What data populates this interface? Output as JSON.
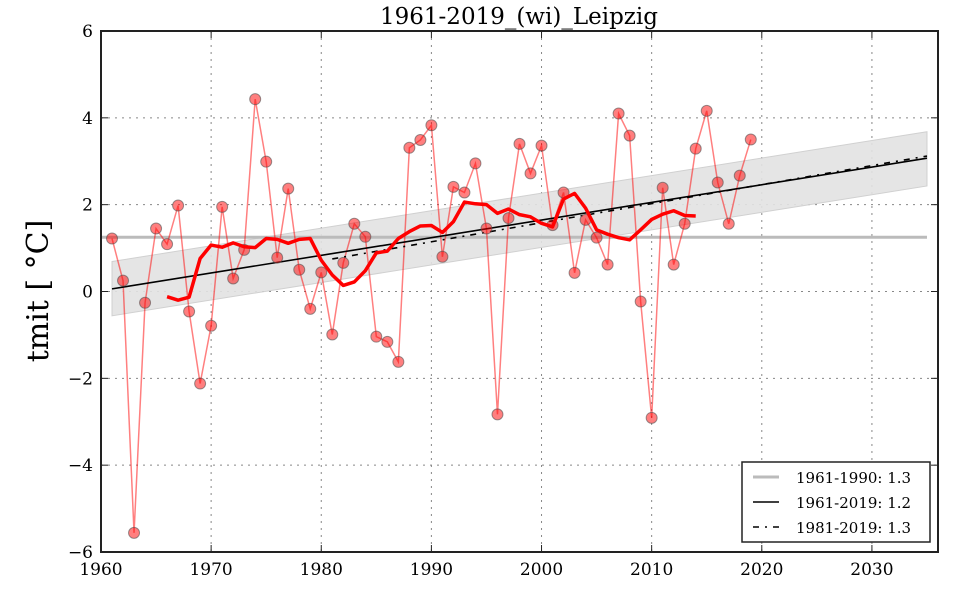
{
  "chart_data": {
    "type": "line",
    "title": "1961-2019_(wi)_Leipzig",
    "xlabel": "",
    "ylabel": "tmit [ °C]",
    "xlim": [
      1960,
      2036
    ],
    "ylim": [
      -6,
      6
    ],
    "xticks": [
      1960,
      1970,
      1980,
      1990,
      2000,
      2010,
      2020,
      2030
    ],
    "yticks": [
      -6,
      -4,
      -2,
      0,
      2,
      4,
      6
    ],
    "xtick_labels": [
      "1960",
      "1970",
      "1980",
      "1990",
      "2000",
      "2010",
      "2020",
      "2030"
    ],
    "ytick_labels": [
      "−6",
      "−4",
      "−2",
      "0",
      "2",
      "4",
      "6"
    ],
    "grid": true,
    "legend_position": "bottom-right",
    "series": [
      {
        "name": "annual values",
        "kind": "line+markers",
        "color": "#ff0000",
        "x": [
          1961,
          1962,
          1963,
          1964,
          1965,
          1966,
          1967,
          1968,
          1969,
          1970,
          1971,
          1972,
          1973,
          1974,
          1975,
          1976,
          1977,
          1978,
          1979,
          1980,
          1981,
          1982,
          1983,
          1984,
          1985,
          1986,
          1987,
          1988,
          1989,
          1990,
          1991,
          1992,
          1993,
          1994,
          1995,
          1996,
          1997,
          1998,
          1999,
          2000,
          2001,
          2002,
          2003,
          2004,
          2005,
          2006,
          2007,
          2008,
          2009,
          2010,
          2011,
          2012,
          2013,
          2014,
          2015,
          2016,
          2017,
          2018,
          2019
        ],
        "values": [
          1.22,
          0.25,
          -5.56,
          -0.26,
          1.45,
          1.09,
          1.98,
          -0.46,
          -2.12,
          -0.79,
          1.95,
          0.3,
          0.96,
          4.43,
          2.99,
          0.78,
          2.37,
          0.5,
          -0.4,
          0.44,
          -0.99,
          0.66,
          1.56,
          1.26,
          -1.04,
          -1.16,
          -1.62,
          3.31,
          3.49,
          3.83,
          0.8,
          2.41,
          2.28,
          2.95,
          1.45,
          -2.83,
          1.69,
          3.4,
          2.72,
          3.36,
          1.53,
          2.28,
          0.43,
          1.65,
          1.24,
          0.62,
          4.1,
          3.59,
          -0.23,
          -2.91,
          2.39,
          0.62,
          1.56,
          3.29,
          4.16,
          2.51,
          1.56,
          2.67,
          3.5
        ]
      },
      {
        "name": "running mean",
        "kind": "line",
        "color": "#ff0000",
        "x": [
          1966,
          1967,
          1968,
          1969,
          1970,
          1971,
          1972,
          1973,
          1974,
          1975,
          1976,
          1977,
          1978,
          1979,
          1980,
          1981,
          1982,
          1983,
          1984,
          1985,
          1986,
          1987,
          1988,
          1989,
          1990,
          1991,
          1992,
          1993,
          1994,
          1995,
          1996,
          1997,
          1998,
          1999,
          2000,
          2001,
          2002,
          2003,
          2004,
          2005,
          2006,
          2007,
          2008,
          2009,
          2010,
          2011,
          2012,
          2013,
          2014
        ],
        "values": [
          -0.12,
          -0.2,
          -0.13,
          0.76,
          1.07,
          1.02,
          1.12,
          1.03,
          1.01,
          1.22,
          1.2,
          1.11,
          1.2,
          1.22,
          0.72,
          0.38,
          0.14,
          0.22,
          0.48,
          0.89,
          0.93,
          1.22,
          1.38,
          1.51,
          1.52,
          1.36,
          1.61,
          2.06,
          2.02,
          2.0,
          1.8,
          1.9,
          1.77,
          1.72,
          1.57,
          1.49,
          2.13,
          2.26,
          1.92,
          1.42,
          1.32,
          1.24,
          1.19,
          1.42,
          1.66,
          1.78,
          1.86,
          1.75,
          1.74
        ]
      },
      {
        "name": "1961-1990: 1.3",
        "kind": "hline",
        "color": "#bbbbbb",
        "x": [
          1960,
          2035
        ],
        "values": [
          1.25,
          1.25
        ]
      },
      {
        "name": "1961-2019: 1.2",
        "kind": "trend",
        "color": "#000000",
        "x": [
          1961,
          2035
        ],
        "values": [
          0.06,
          3.07
        ]
      },
      {
        "name": "1981-2019: 1.3",
        "kind": "trend-dashed",
        "color": "#000000",
        "x": [
          1981,
          2035
        ],
        "values": [
          0.75,
          3.12
        ]
      },
      {
        "name": "confidence band",
        "kind": "band",
        "color": "#e3e3e3",
        "x": [
          1961,
          2035
        ],
        "upper": [
          0.69,
          3.68
        ],
        "lower": [
          -0.56,
          2.43
        ]
      }
    ],
    "legend": [
      {
        "label": "1961-1990: 1.3",
        "style": "thick-grey"
      },
      {
        "label": "1961-2019: 1.2",
        "style": "solid-black"
      },
      {
        "label": "1981-2019: 1.3",
        "style": "dashdot-black"
      }
    ]
  }
}
